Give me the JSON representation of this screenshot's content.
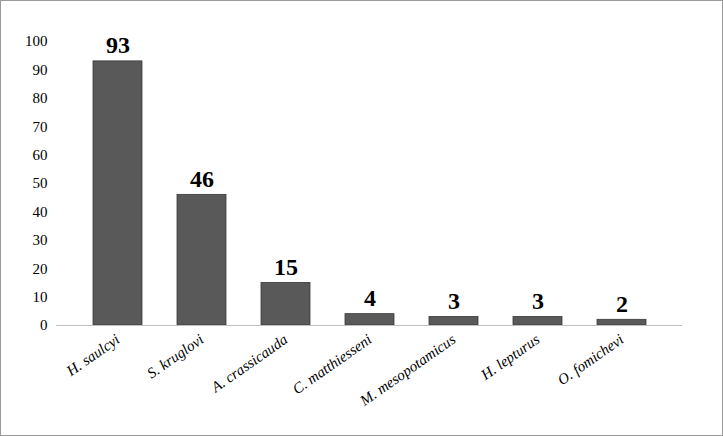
{
  "chart_data": {
    "type": "bar",
    "categories": [
      "H. saulcyi",
      "S. kruglovi",
      "A. crassicauda",
      "C. matthiesseni",
      "M. mesopotamicus",
      "H. lepturus",
      "O. fomichevi"
    ],
    "values": [
      93,
      46,
      15,
      4,
      3,
      3,
      2
    ],
    "color": "#595959",
    "ylim": [
      0,
      100
    ],
    "yticks": [
      0,
      10,
      20,
      30,
      40,
      50,
      60,
      70,
      80,
      90,
      100
    ],
    "grid": false,
    "data_labels": true
  }
}
